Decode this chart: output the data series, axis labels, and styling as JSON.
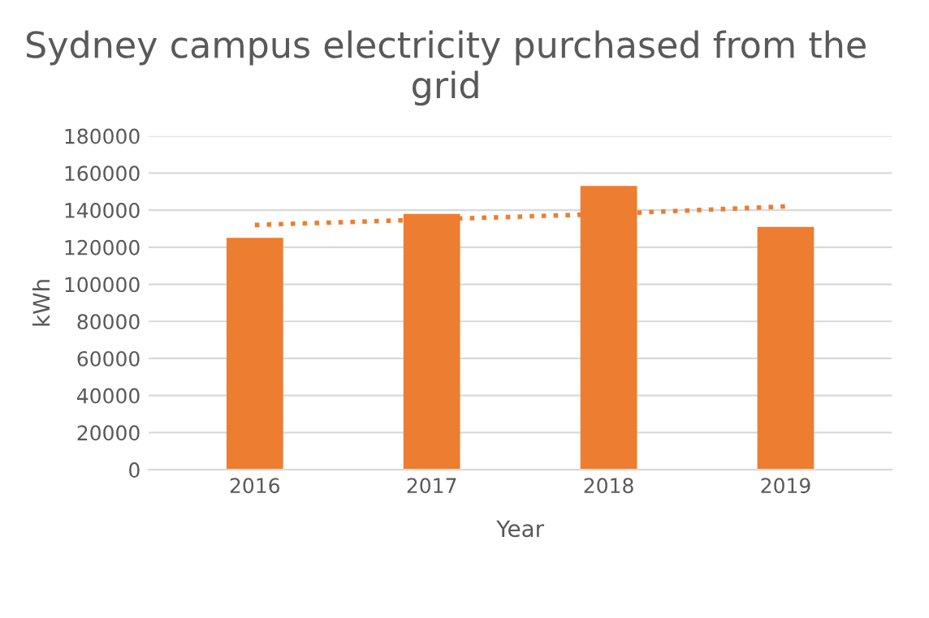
{
  "chart_data": {
    "type": "bar",
    "title": "Sydney campus electricity purchased from the grid",
    "xlabel": "Year",
    "ylabel": "kWh",
    "categories": [
      "2016",
      "2017",
      "2018",
      "2019"
    ],
    "series": [
      {
        "color": "#ed7d31",
        "values": [
          125000,
          138000,
          153000,
          131000
        ]
      },
      {
        "type": "line",
        "color": "#ed7d31",
        "line_style": "dotted",
        "values": [
          132000,
          135000,
          138000,
          142000
        ]
      }
    ],
    "ylim": [
      0,
      180000
    ],
    "yticks": [
      0,
      20000,
      40000,
      60000,
      80000,
      100000,
      120000,
      140000,
      160000,
      180000
    ],
    "grid": "y"
  }
}
